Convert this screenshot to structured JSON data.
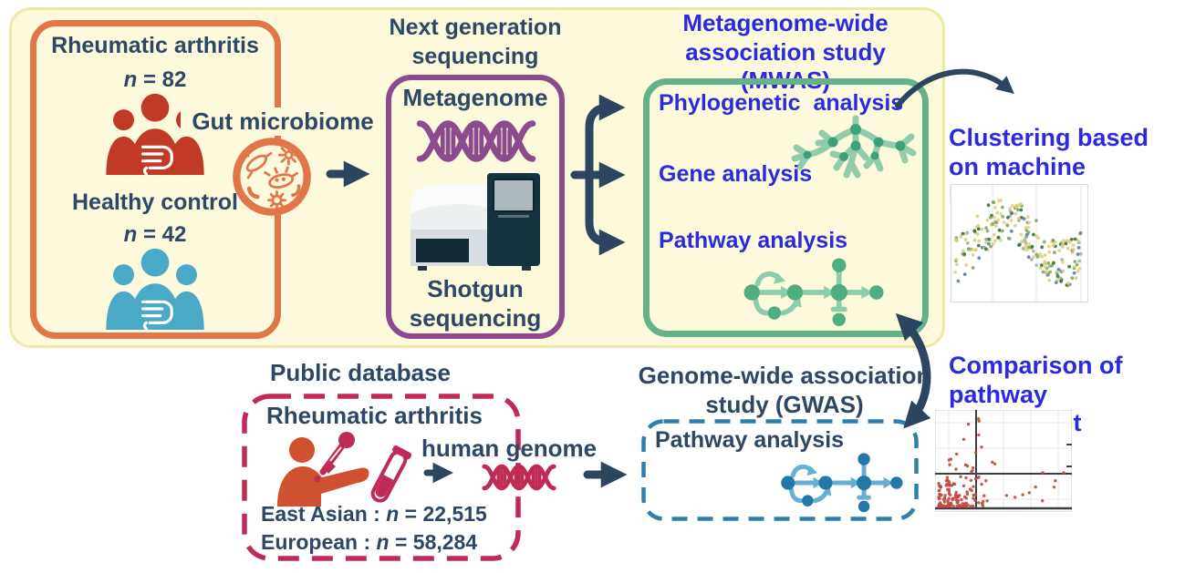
{
  "palette": {
    "panel_bg": "#FCF9DC",
    "panel_border": "#EFE9A8",
    "navy_text": "#2E4766",
    "navy_arrow": "#2E4560",
    "blue_text": "#2B2BDE",
    "orange_border": "#E0764A",
    "ra_person_red": "#C13A25",
    "hc_person_teal": "#4BA9C8",
    "purple_border": "#8D4A8D",
    "green_border": "#66B189",
    "tree_green_light": "#92CCAC",
    "tree_green_node": "#3EA078",
    "pathway_green_node": "#4FAE80",
    "pathway_green_arrow": "#8FCCAE",
    "crimson": "#C02B55",
    "sampling_person_orange": "#D05130",
    "gwas_dash_blue": "#2E80AA",
    "pathway_blue_node": "#2478A8",
    "pathway_blue_arrow": "#68AED2",
    "enrichment_dot_red": "#C04A3C"
  },
  "cohort_box": {
    "ra_label": "Rheumatic arthritis",
    "ra_n_symbol": "n",
    "ra_n_rest": " = 82",
    "hc_label": "Healthy control",
    "hc_n_symbol": "n",
    "hc_n_rest": " = 42"
  },
  "gut_microbiome": {
    "label": "Gut microbiome"
  },
  "ngs": {
    "title_line1": "Next generation",
    "title_line2": "sequencing",
    "metagenome_label": "Metagenome",
    "shotgun_line1": "Shotgun",
    "shotgun_line2": "sequencing"
  },
  "mwas": {
    "title_line1": "Metagenome-wide",
    "title_line2": "association study (MWAS)",
    "items": [
      "Phylogenetic  analysis",
      "Gene analysis",
      "Pathway analysis"
    ]
  },
  "clustering": {
    "line1": "Clustering based",
    "line2": "on machine learning"
  },
  "comparison": {
    "line1": "Comparison of",
    "line2": "pathway enrichment"
  },
  "public_db": {
    "title": "Public database",
    "ra_label": "Rheumatic arthritis",
    "ea_prefix": "East Asian :  ",
    "ea_n": "n",
    "ea_rest": " = 22,515",
    "eu_prefix": "European : ",
    "eu_n": "n",
    "eu_rest": " = 58,284"
  },
  "human_genome": {
    "label": "human genome"
  },
  "gwas": {
    "title_line1": "Genome-wide association",
    "title_line2": "study (GWAS)",
    "pathway_label": "Pathway analysis"
  },
  "figures": {
    "clustering_scatter": {
      "type": "scatter",
      "description": "unlabeled t-SNE style clustering thumbnail",
      "dot_colors": [
        "#DDCE7C",
        "#7FA353",
        "#2F6B35",
        "#4C79AD",
        "#9FB0A6"
      ],
      "dot_count": 235
    },
    "enrichment_scatter": {
      "type": "scatter",
      "description": "unlabeled pathway-enrichment comparison thumbnail with crosshair axes",
      "dot_colors": [
        "#C04A3C"
      ],
      "dot_count": 150
    }
  }
}
